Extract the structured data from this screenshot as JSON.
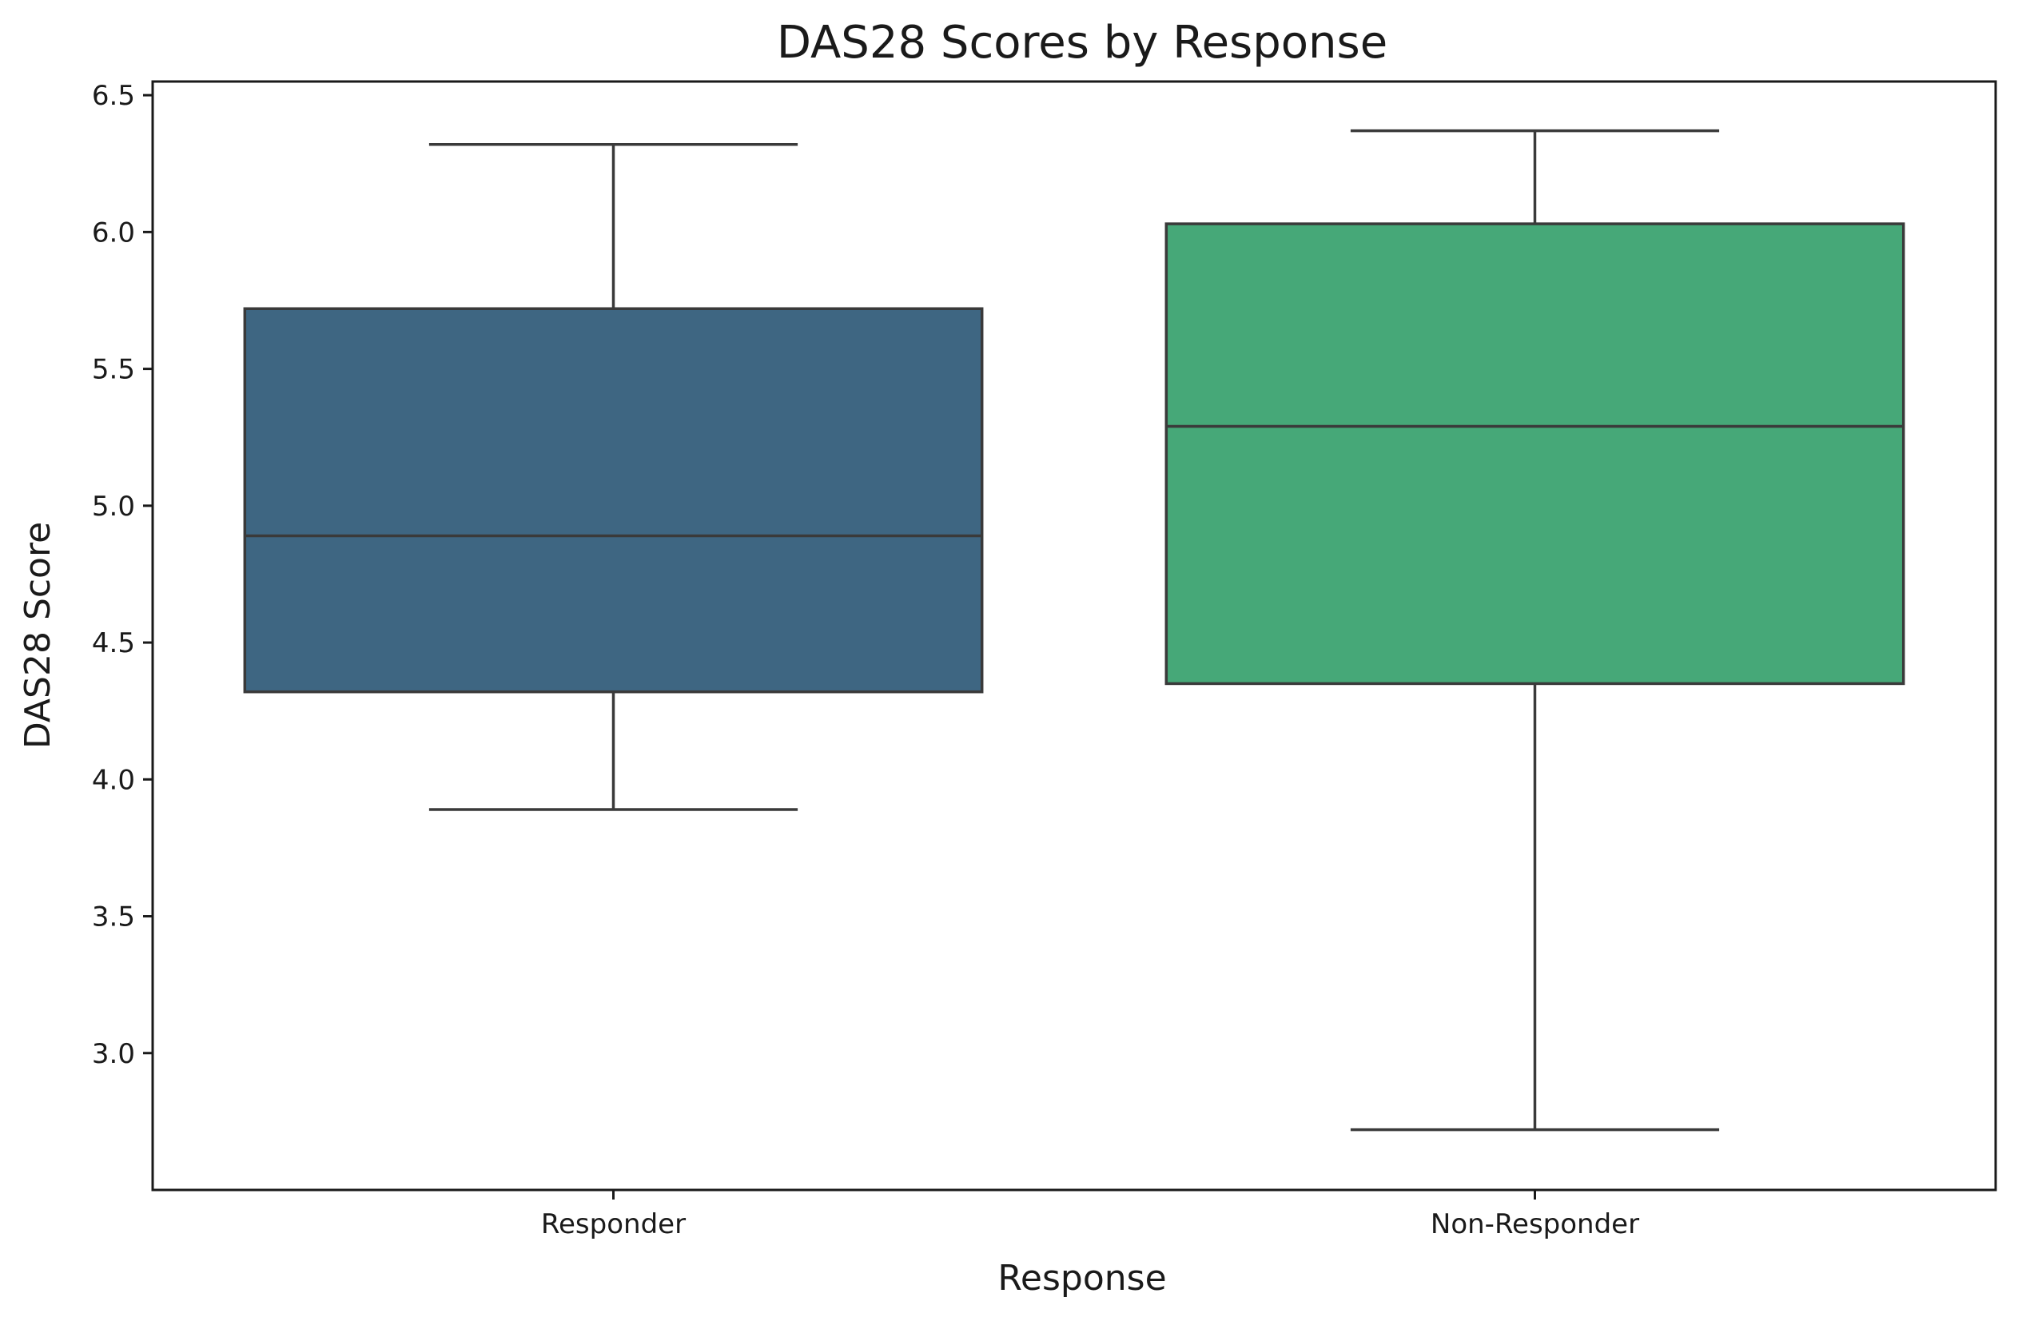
{
  "chart_data": {
    "type": "box",
    "title": "DAS28 Scores by Response",
    "xlabel": "Response",
    "ylabel": "DAS28 Score",
    "ylim": [
      2.5,
      6.55
    ],
    "yticks": [
      3.0,
      3.5,
      4.0,
      4.5,
      5.0,
      5.5,
      6.0,
      6.5
    ],
    "ytick_labels": [
      "3.0",
      "3.5",
      "4.0",
      "4.5",
      "5.0",
      "5.5",
      "6.0",
      "6.5"
    ],
    "categories": [
      "Responder",
      "Non-Responder"
    ],
    "boxes": [
      {
        "category": "Responder",
        "whisker_low": 3.89,
        "q1": 4.32,
        "median": 4.89,
        "q3": 5.72,
        "whisker_high": 6.32,
        "color": "#3e6682"
      },
      {
        "category": "Non-Responder",
        "whisker_low": 2.72,
        "q1": 4.35,
        "median": 5.29,
        "q3": 6.03,
        "whisker_high": 6.37,
        "color": "#46a878"
      }
    ],
    "grid": false,
    "legend": "none"
  }
}
